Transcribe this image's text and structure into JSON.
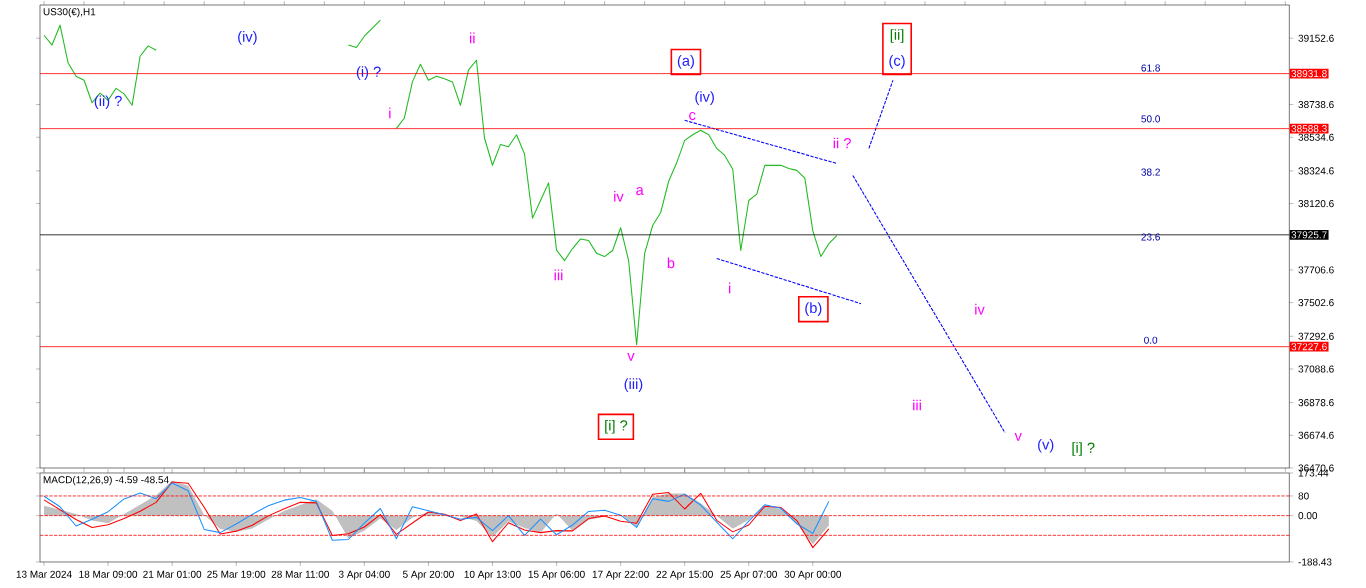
{
  "chart_data": [
    {
      "type": "line",
      "title": "US30(€),H1",
      "ylim": [
        36470.6,
        39360
      ],
      "categories": [
        null,
        null,
        null,
        null,
        null,
        null,
        null,
        null,
        null,
        null,
        null,
        null,
        null,
        null,
        null,
        null,
        null,
        null,
        null,
        null,
        null,
        null,
        null,
        null,
        null,
        null,
        null,
        null,
        null,
        null,
        null,
        null,
        null,
        null,
        null,
        null,
        null,
        null,
        null,
        null,
        null,
        null,
        null,
        null,
        null,
        null,
        null,
        null,
        null,
        null,
        null,
        null,
        null,
        null,
        null,
        null,
        null,
        null,
        null,
        null,
        null,
        null,
        null,
        null,
        null,
        null,
        null,
        null,
        null,
        null,
        null,
        null,
        null,
        null,
        null,
        null,
        null,
        null,
        null,
        null,
        null,
        null,
        null,
        null,
        null,
        null,
        null,
        null,
        null,
        null,
        null,
        null,
        null,
        null,
        null,
        null,
        null,
        null,
        null,
        null,
        null,
        null,
        null,
        null,
        null,
        null,
        null,
        null,
        null,
        null,
        null,
        null,
        null,
        null,
        null,
        null,
        null,
        null,
        null,
        null,
        null,
        null,
        null,
        null,
        null,
        null,
        null,
        null,
        null,
        null,
        null,
        null,
        null,
        null,
        null,
        null,
        null,
        null,
        null,
        null,
        null,
        null,
        null,
        null,
        null,
        null,
        null,
        null,
        null,
        null,
        null,
        null,
        null,
        null,
        null,
        null
      ],
      "yticks": [
        39152.6,
        38738.6,
        38534.6,
        38324.6,
        38120.6,
        37706.6,
        37502.6,
        37292.6,
        37088.6,
        36878.6,
        36674.6,
        36470.6
      ],
      "tick_labels": "y",
      "series": [
        {
          "color": "#22bb22",
          "values": [
            39171,
            39110,
            39234,
            39000,
            38915,
            38890,
            38750,
            38810,
            38765,
            38840,
            38805,
            38734,
            39040,
            39105,
            39078,
            null,
            null,
            null,
            null,
            null,
            null,
            null,
            null,
            null,
            null,
            null,
            null,
            null,
            null,
            null,
            null,
            null,
            null,
            null,
            null,
            null,
            null,
            null,
            39110,
            39095,
            39165,
            39215,
            39265,
            null,
            38590,
            38655,
            38880,
            38990,
            38890,
            38915,
            38900,
            38880,
            38734,
            38953,
            39015,
            38530,
            38360,
            38490,
            38475,
            38550,
            38430,
            38030,
            38140,
            38250,
            37830,
            37765,
            37840,
            37900,
            37890,
            37810,
            37790,
            37828,
            37970,
            37765,
            37240,
            37810,
            37984,
            38065,
            38260,
            38375,
            38515,
            38550,
            38578,
            38550,
            38465,
            38421,
            38335,
            37828,
            38140,
            38180,
            38359,
            38359,
            38360,
            38340,
            38328,
            38280,
            37950,
            37790,
            37870,
            37921,
            null,
            null,
            null,
            null,
            null,
            null,
            null,
            null,
            null,
            null,
            null,
            null,
            null,
            null,
            null,
            null,
            null,
            null,
            null,
            null,
            null,
            null,
            null,
            null,
            null,
            null,
            null,
            null,
            null,
            null,
            null,
            null,
            null,
            null,
            null,
            null,
            null,
            null,
            null,
            null,
            null,
            null,
            null,
            null,
            null,
            null,
            null,
            null,
            null,
            null,
            null,
            null,
            null,
            null,
            null,
            null
          ]
        },
        {
          "color": "#0000ff",
          "line_style": "dashed",
          "values": [
            null,
            null,
            null,
            null,
            null,
            null,
            null,
            null,
            null,
            null,
            null,
            null,
            null,
            null,
            null,
            null,
            null,
            null,
            null,
            null,
            null,
            null,
            null,
            null,
            null,
            null,
            null,
            null,
            null,
            null,
            null,
            null,
            null,
            null,
            null,
            null,
            null,
            null,
            null,
            null,
            null,
            null,
            null,
            null,
            null,
            null,
            null,
            null,
            null,
            null,
            null,
            null,
            null,
            null,
            null,
            null,
            null,
            null,
            null,
            null,
            null,
            null,
            null,
            null,
            null,
            null,
            null,
            null,
            null,
            null,
            null,
            null,
            null,
            null,
            null,
            null,
            null,
            null,
            null,
            null,
            38640,
            38626,
            38612,
            38598,
            38583,
            38569,
            38555,
            38541,
            38527,
            38513,
            38498,
            38484,
            38470,
            38456,
            38442,
            38428,
            38413,
            38399,
            38385,
            38371,
            null,
            null,
            null,
            null,
            null,
            null,
            null,
            null,
            null,
            null,
            null,
            null,
            null,
            null,
            null,
            null,
            null,
            null,
            null,
            null,
            null,
            null,
            null,
            null,
            null,
            null,
            null,
            null,
            null,
            null,
            null,
            null,
            null,
            null,
            null,
            null,
            null,
            null,
            null,
            null,
            null,
            null,
            null,
            null,
            null,
            null,
            null,
            null,
            null,
            null,
            null,
            null,
            null,
            null,
            null,
            null
          ]
        },
        {
          "color": "#0000ff",
          "line_style": "dashed",
          "values": [
            null,
            null,
            null,
            null,
            null,
            null,
            null,
            null,
            null,
            null,
            null,
            null,
            null,
            null,
            null,
            null,
            null,
            null,
            null,
            null,
            null,
            null,
            null,
            null,
            null,
            null,
            null,
            null,
            null,
            null,
            null,
            null,
            null,
            null,
            null,
            null,
            null,
            null,
            null,
            null,
            null,
            null,
            null,
            null,
            null,
            null,
            null,
            null,
            null,
            null,
            null,
            null,
            null,
            null,
            null,
            null,
            null,
            null,
            null,
            null,
            null,
            null,
            null,
            null,
            null,
            null,
            null,
            null,
            null,
            null,
            null,
            null,
            null,
            null,
            null,
            null,
            null,
            null,
            null,
            null,
            null,
            null,
            null,
            null,
            37778,
            37762,
            37747,
            37731,
            37715,
            37700,
            37684,
            37668,
            37653,
            37637,
            37621,
            37606,
            37590,
            37574,
            37559,
            37543,
            37527,
            37512,
            37496,
            null,
            null,
            null,
            null,
            null,
            null,
            null,
            null,
            null,
            null,
            null,
            null,
            null,
            null,
            null,
            null,
            null,
            null,
            null,
            null,
            null,
            null,
            null,
            null,
            null,
            null,
            null,
            null,
            null,
            null,
            null,
            null,
            null,
            null,
            null,
            null,
            null,
            null,
            null,
            null,
            null,
            null,
            null,
            null,
            null,
            null,
            null,
            null,
            null,
            null,
            null,
            null,
            null
          ]
        },
        {
          "color": "#0000ff",
          "line_style": "dashed",
          "values": [
            null,
            null,
            null,
            null,
            null,
            null,
            null,
            null,
            null,
            null,
            null,
            null,
            null,
            null,
            null,
            null,
            null,
            null,
            null,
            null,
            null,
            null,
            null,
            null,
            null,
            null,
            null,
            null,
            null,
            null,
            null,
            null,
            null,
            null,
            null,
            null,
            null,
            null,
            null,
            null,
            null,
            null,
            null,
            null,
            null,
            null,
            null,
            null,
            null,
            null,
            null,
            null,
            null,
            null,
            null,
            null,
            null,
            null,
            null,
            null,
            null,
            null,
            null,
            null,
            null,
            null,
            null,
            null,
            null,
            null,
            null,
            null,
            null,
            null,
            null,
            null,
            null,
            null,
            null,
            null,
            null,
            null,
            null,
            null,
            null,
            null,
            null,
            null,
            null,
            null,
            null,
            null,
            null,
            null,
            null,
            null,
            null,
            null,
            null,
            null,
            null,
            null,
            null,
            38465,
            38607,
            38748,
            38890,
            null,
            null,
            null,
            null,
            null,
            null,
            null,
            null,
            null,
            null,
            null,
            null,
            null,
            null,
            null,
            null,
            null,
            null,
            null,
            null,
            null,
            null,
            null,
            null,
            null,
            null,
            null,
            null,
            null,
            null,
            null,
            null,
            null,
            null,
            null,
            null,
            null,
            null,
            null,
            null,
            null,
            null,
            null,
            null,
            null,
            null,
            null,
            null,
            null
          ]
        },
        {
          "color": "#0000ff",
          "line_style": "dashed",
          "values": [
            null,
            null,
            null,
            null,
            null,
            null,
            null,
            null,
            null,
            null,
            null,
            null,
            null,
            null,
            null,
            null,
            null,
            null,
            null,
            null,
            null,
            null,
            null,
            null,
            null,
            null,
            null,
            null,
            null,
            null,
            null,
            null,
            null,
            null,
            null,
            null,
            null,
            null,
            null,
            null,
            null,
            null,
            null,
            null,
            null,
            null,
            null,
            null,
            null,
            null,
            null,
            null,
            null,
            null,
            null,
            null,
            null,
            null,
            null,
            null,
            null,
            null,
            null,
            null,
            null,
            null,
            null,
            null,
            null,
            null,
            null,
            null,
            null,
            null,
            null,
            null,
            null,
            null,
            null,
            null,
            null,
            null,
            null,
            null,
            null,
            null,
            null,
            null,
            null,
            null,
            null,
            null,
            null,
            null,
            null,
            null,
            null,
            null,
            null,
            null,
            null,
            38296,
            38211,
            38127,
            38042,
            37958,
            37873,
            37789,
            37704,
            37620,
            37535,
            37451,
            37367,
            37282,
            37198,
            37113,
            37029,
            36944,
            36860,
            36775,
            36690,
            null,
            null,
            null,
            null,
            null,
            null,
            null,
            null,
            null,
            null,
            null,
            null,
            null,
            null,
            null,
            null,
            null,
            null,
            null,
            null,
            null,
            null,
            null,
            null,
            null,
            null,
            null,
            null,
            null,
            null,
            null,
            null,
            null,
            null,
            null
          ]
        }
      ],
      "ref_lines": [
        {
          "axis": "y",
          "value": 38931.8,
          "label": "38931.8",
          "color": "#ff0000"
        },
        {
          "axis": "y",
          "value": 38588.3,
          "label": "38588.3",
          "color": "#ff0000"
        },
        {
          "axis": "y",
          "value": 37227.6,
          "label": "37227.6",
          "color": "#ff0000"
        },
        {
          "axis": "y",
          "value": 37925.7,
          "label": "37925.7",
          "color": "#000000"
        }
      ],
      "annotations": [
        "(ii) ?",
        "(iv)",
        "(i) ?",
        "ii",
        "i",
        "(a)",
        "(iv)",
        "c",
        "[ii]",
        "(c)",
        "ii ?",
        "iv",
        "a",
        "b",
        "iii",
        "i",
        "(b)",
        "v",
        "(iii)",
        "[i] ?",
        "iv",
        "iii",
        "v",
        "(v)",
        "[i] ?",
        "61.8",
        "50.0",
        "38.2",
        "23.6",
        "0.0"
      ]
    },
    {
      "type": "line",
      "title": "MACD(12,26,9) -4.59 -48.54",
      "ylim": [
        -188.43,
        173.44
      ],
      "categories": [
        "13 Mar 2024",
        null,
        null,
        null,
        "18 Mar 09:00",
        null,
        null,
        null,
        "21 Mar 01:00",
        null,
        null,
        null,
        "25 Mar 19:00",
        null,
        null,
        null,
        "28 Mar 11:00",
        null,
        null,
        null,
        "3 Apr 04:00",
        null,
        null,
        null,
        "5 Apr 20:00",
        null,
        null,
        null,
        "10 Apr 13:00",
        null,
        null,
        null,
        "15 Apr 06:00",
        null,
        null,
        null,
        "17 Apr 22:00",
        null,
        null,
        null,
        "22 Apr 15:00",
        null,
        null,
        null,
        "25 Apr 07:00",
        null,
        null,
        null,
        "30 Apr 00:00",
        null,
        null,
        null,
        null,
        null,
        null,
        null,
        null,
        null,
        null,
        null,
        null,
        null,
        null,
        null,
        null,
        null,
        null,
        null,
        null,
        null,
        null,
        null,
        null,
        null,
        null,
        null,
        null,
        null
      ],
      "yticks": [
        173.44,
        80,
        {
          "value": 0,
          "label": "0.00"
        },
        -188.43
      ],
      "series": [
        {
          "type": "area",
          "color": "#c0c0c0",
          "values": [
            40,
            24,
            7,
            -20,
            -31,
            7,
            44,
            83,
            142,
            122,
            3,
            -54,
            -66,
            -52,
            -16,
            20,
            43,
            67,
            20,
            -92,
            -60,
            -12,
            -58,
            -9,
            15,
            6,
            -3,
            -22,
            -88,
            -24,
            -50,
            -70,
            9,
            -62,
            -17,
            -3,
            5,
            -45,
            75,
            90,
            90,
            50,
            0,
            -53,
            -17,
            40,
            27,
            -33,
            -116,
            -40,
            null,
            null,
            null,
            null,
            null,
            null,
            null,
            null,
            null,
            null,
            null,
            null,
            null,
            null,
            null,
            null,
            null,
            null,
            null,
            null,
            null,
            null,
            null,
            null,
            null,
            null,
            null,
            null
          ]
        },
        {
          "color": "#ff0000",
          "values": [
            64,
            24,
            -16,
            -48,
            -37,
            -12,
            18,
            54,
            137,
            132,
            34,
            -75,
            -63,
            -39,
            -1,
            28,
            54,
            52,
            -81,
            -74,
            -46,
            4,
            -76,
            -30,
            15,
            6,
            -20,
            7,
            -106,
            -29,
            -58,
            -69,
            -61,
            -62,
            -12,
            -1,
            -23,
            -31,
            87,
            94,
            27,
            91,
            -19,
            -66,
            -38,
            38,
            33,
            -20,
            -130,
            -54,
            null,
            null,
            null,
            null,
            null,
            null,
            null,
            null,
            null,
            null,
            null,
            null,
            null,
            null,
            null,
            null,
            null,
            null,
            null,
            null,
            null,
            null,
            null,
            null,
            null,
            null,
            null,
            null
          ]
        },
        {
          "color": "#1e90ff",
          "values": [
            79,
            36,
            -42,
            -15,
            16,
            68,
            92,
            69,
            133,
            101,
            -56,
            -69,
            -34,
            5,
            40,
            63,
            74,
            58,
            -100,
            -97,
            -30,
            29,
            -94,
            36,
            20,
            4,
            -15,
            -7,
            -61,
            0,
            -80,
            -14,
            -78,
            -38,
            17,
            22,
            2,
            -48,
            69,
            58,
            87,
            43,
            -26,
            -94,
            -22,
            44,
            30,
            -33,
            -72,
            58,
            null,
            null,
            null,
            null,
            null,
            null,
            null,
            null,
            null,
            null,
            null,
            null,
            null,
            null,
            null,
            null,
            null,
            null,
            null,
            null,
            null,
            null,
            null,
            null,
            null,
            null,
            null,
            null
          ]
        }
      ],
      "ref_lines": [
        {
          "axis": "y",
          "value": 80,
          "color": "#ff0000",
          "line_style": "dashed"
        },
        {
          "axis": "y",
          "value": 0,
          "color": "#ff0000",
          "line_style": "dashed"
        },
        {
          "axis": "y",
          "value": -80,
          "color": "#ff0000",
          "line_style": "dashed"
        }
      ]
    }
  ]
}
